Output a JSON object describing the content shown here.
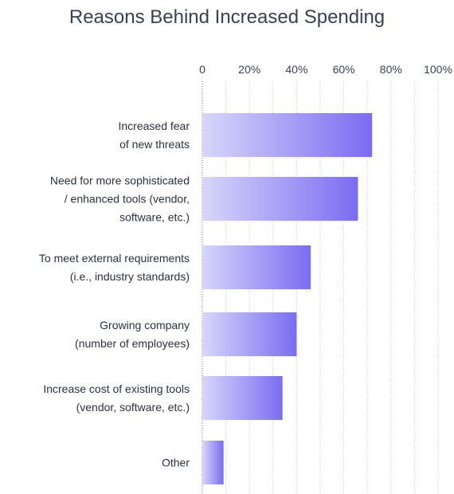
{
  "chart_data": {
    "type": "bar",
    "orientation": "horizontal",
    "title": "Reasons Behind Increased Spending",
    "xlim": [
      0,
      100
    ],
    "ticks": [
      0,
      20,
      40,
      60,
      80,
      100
    ],
    "tick_labels": [
      "0",
      "20%",
      "40%",
      "60%",
      "80%",
      "100%"
    ],
    "grid": true,
    "categories": [
      [
        "Increased fear",
        "of new threats"
      ],
      [
        "Need for more sophisticated",
        "/ enhanced tools (vendor,",
        "software, etc.)"
      ],
      [
        "To meet external requirements",
        "(i.e., industry standards)"
      ],
      [
        "Growing company",
        "(number of employees)"
      ],
      [
        "Increase cost of existing tools",
        "(vendor, software, etc.)"
      ],
      [
        "Other"
      ]
    ],
    "values": [
      72,
      66,
      46,
      40,
      34,
      9
    ],
    "colors": {
      "bar_start": "#d6d6fb",
      "bar_end": "#7a6cf2",
      "grid": "#c9cad4",
      "axis": "#6e7185"
    }
  }
}
